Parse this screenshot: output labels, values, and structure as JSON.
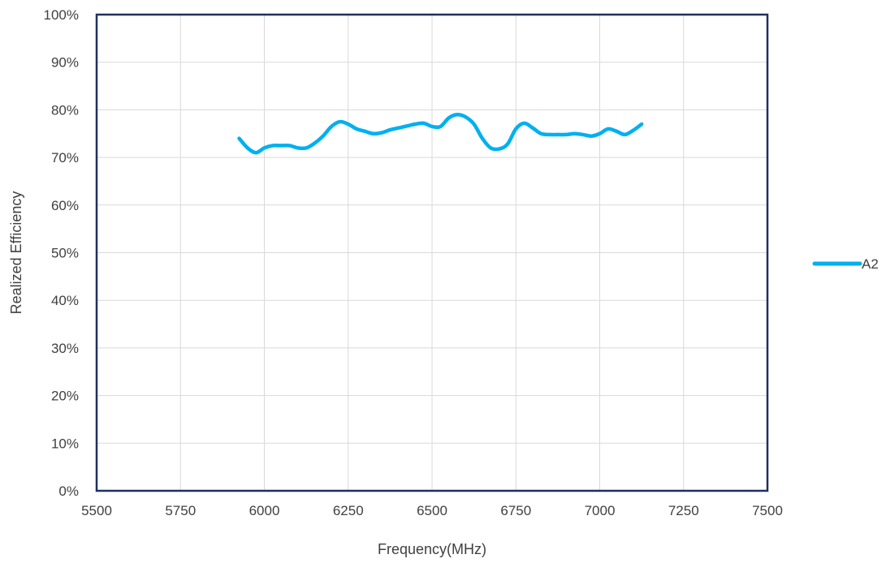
{
  "chart_data": {
    "type": "line",
    "title": "",
    "xlabel": "Frequency(MHz)",
    "ylabel": "Realized Efficiency",
    "xlim": [
      5500,
      7500
    ],
    "ylim": [
      0,
      1
    ],
    "x_ticks": [
      5500,
      5750,
      6000,
      6250,
      6500,
      6750,
      7000,
      7250,
      7500
    ],
    "x_tick_labels": [
      "5500",
      "5750",
      "6000",
      "6250",
      "6500",
      "6750",
      "7000",
      "7250",
      "7500"
    ],
    "y_ticks": [
      0,
      0.1,
      0.2,
      0.3,
      0.4,
      0.5,
      0.6,
      0.7,
      0.8,
      0.9,
      1.0
    ],
    "y_tick_labels": [
      "0%",
      "10%",
      "20%",
      "30%",
      "40%",
      "50%",
      "60%",
      "70%",
      "80%",
      "90%",
      "100%"
    ],
    "grid": true,
    "legend_position": "right",
    "series": [
      {
        "name": "A2",
        "color": "#00b0f0",
        "x": [
          5925,
          5950,
          5975,
          6000,
          6025,
          6050,
          6075,
          6100,
          6125,
          6150,
          6175,
          6200,
          6225,
          6250,
          6275,
          6300,
          6325,
          6350,
          6375,
          6400,
          6425,
          6450,
          6475,
          6500,
          6525,
          6550,
          6575,
          6600,
          6625,
          6650,
          6675,
          6700,
          6725,
          6750,
          6775,
          6800,
          6825,
          6850,
          6875,
          6900,
          6925,
          6950,
          6975,
          7000,
          7025,
          7050,
          7075,
          7100,
          7125
        ],
        "y": [
          0.74,
          0.72,
          0.71,
          0.72,
          0.725,
          0.725,
          0.725,
          0.72,
          0.72,
          0.73,
          0.745,
          0.765,
          0.775,
          0.77,
          0.76,
          0.755,
          0.75,
          0.752,
          0.758,
          0.762,
          0.766,
          0.77,
          0.772,
          0.765,
          0.765,
          0.783,
          0.79,
          0.785,
          0.77,
          0.74,
          0.72,
          0.718,
          0.728,
          0.76,
          0.772,
          0.762,
          0.75,
          0.748,
          0.748,
          0.748,
          0.75,
          0.748,
          0.745,
          0.75,
          0.76,
          0.755,
          0.748,
          0.757,
          0.77
        ]
      }
    ]
  }
}
